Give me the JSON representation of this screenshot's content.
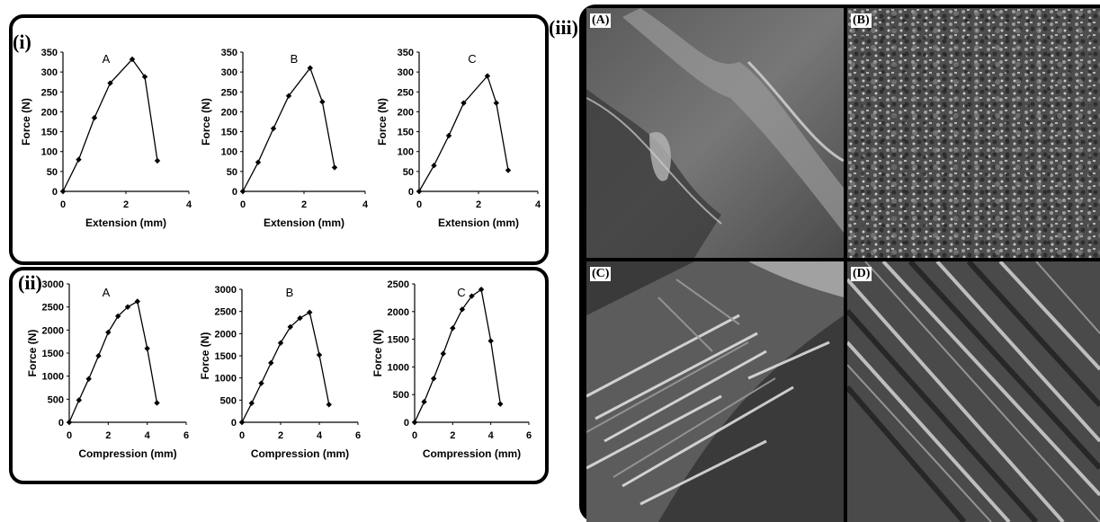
{
  "panel_labels": {
    "i": "(i)",
    "ii": "(ii)",
    "iii": "(iii)"
  },
  "sem_images": [
    {
      "label": "(A)",
      "texture": "smooth"
    },
    {
      "label": "(B)",
      "texture": "granular"
    },
    {
      "label": "(C)",
      "texture": "fibrous"
    },
    {
      "label": "(D)",
      "texture": "fibrous-dense"
    }
  ],
  "chart_data": [
    {
      "type": "line",
      "letter": "A",
      "xlabel": "Extension (mm)",
      "ylabel": "Force (N)",
      "xlim": [
        0,
        4
      ],
      "ylim": [
        0,
        350
      ],
      "xticks": [
        0,
        2,
        4
      ],
      "yticks": [
        0,
        50,
        100,
        150,
        200,
        250,
        300,
        350
      ],
      "x": [
        0,
        0.5,
        1,
        1.5,
        2.2,
        2.6,
        3
      ],
      "y": [
        0,
        80,
        185,
        272,
        332,
        288,
        77
      ]
    },
    {
      "type": "line",
      "letter": "B",
      "xlabel": "Extension (mm)",
      "ylabel": "Force (N)",
      "xlim": [
        0,
        4
      ],
      "ylim": [
        0,
        350
      ],
      "xticks": [
        0,
        2,
        4
      ],
      "yticks": [
        0,
        50,
        100,
        150,
        200,
        250,
        300,
        350
      ],
      "x": [
        0,
        0.5,
        1,
        1.5,
        2.2,
        2.6,
        3
      ],
      "y": [
        0,
        73,
        158,
        240,
        310,
        225,
        60
      ]
    },
    {
      "type": "line",
      "letter": "C",
      "xlabel": "Extension (mm)",
      "ylabel": "Force (N)",
      "xlim": [
        0,
        4
      ],
      "ylim": [
        0,
        350
      ],
      "xticks": [
        0,
        2,
        4
      ],
      "yticks": [
        0,
        50,
        100,
        150,
        200,
        250,
        300,
        350
      ],
      "x": [
        0,
        0.5,
        1,
        1.5,
        2.3,
        2.6,
        3
      ],
      "y": [
        0,
        65,
        140,
        222,
        290,
        222,
        53
      ]
    },
    {
      "type": "line",
      "letter": "A",
      "xlabel": "Compression (mm)",
      "ylabel": "Force (N)",
      "xlim": [
        0,
        6
      ],
      "ylim": [
        0,
        3000
      ],
      "xticks": [
        0,
        2,
        4,
        6
      ],
      "yticks": [
        0,
        500,
        1000,
        1500,
        2000,
        2500,
        3000
      ],
      "x": [
        0,
        0.5,
        1,
        1.5,
        2,
        2.5,
        3,
        3.5,
        4,
        4.5
      ],
      "y": [
        0,
        480,
        940,
        1440,
        1950,
        2300,
        2500,
        2620,
        1600,
        420
      ]
    },
    {
      "type": "line",
      "letter": "B",
      "xlabel": "Compression (mm)",
      "ylabel": "Force (N)",
      "xlim": [
        0,
        6
      ],
      "ylim": [
        0,
        3000
      ],
      "xticks": [
        0,
        2,
        4,
        6
      ],
      "yticks": [
        0,
        500,
        1000,
        1500,
        2000,
        2500,
        3000
      ],
      "x": [
        0,
        0.5,
        1,
        1.5,
        2,
        2.5,
        3,
        3.5,
        4,
        4.5
      ],
      "y": [
        0,
        430,
        880,
        1340,
        1790,
        2150,
        2350,
        2480,
        1520,
        400
      ]
    },
    {
      "type": "line",
      "letter": "C",
      "xlabel": "Compression (mm)",
      "ylabel": "Force (N)",
      "xlim": [
        0,
        6
      ],
      "ylim": [
        0,
        2500
      ],
      "xticks": [
        0,
        2,
        4,
        6
      ],
      "yticks": [
        0,
        500,
        1000,
        1500,
        2000,
        2500
      ],
      "x": [
        0,
        0.5,
        1,
        1.5,
        2,
        2.5,
        3,
        3.5,
        4,
        4.5
      ],
      "y": [
        0,
        370,
        790,
        1240,
        1700,
        2040,
        2280,
        2400,
        1470,
        330
      ]
    }
  ]
}
